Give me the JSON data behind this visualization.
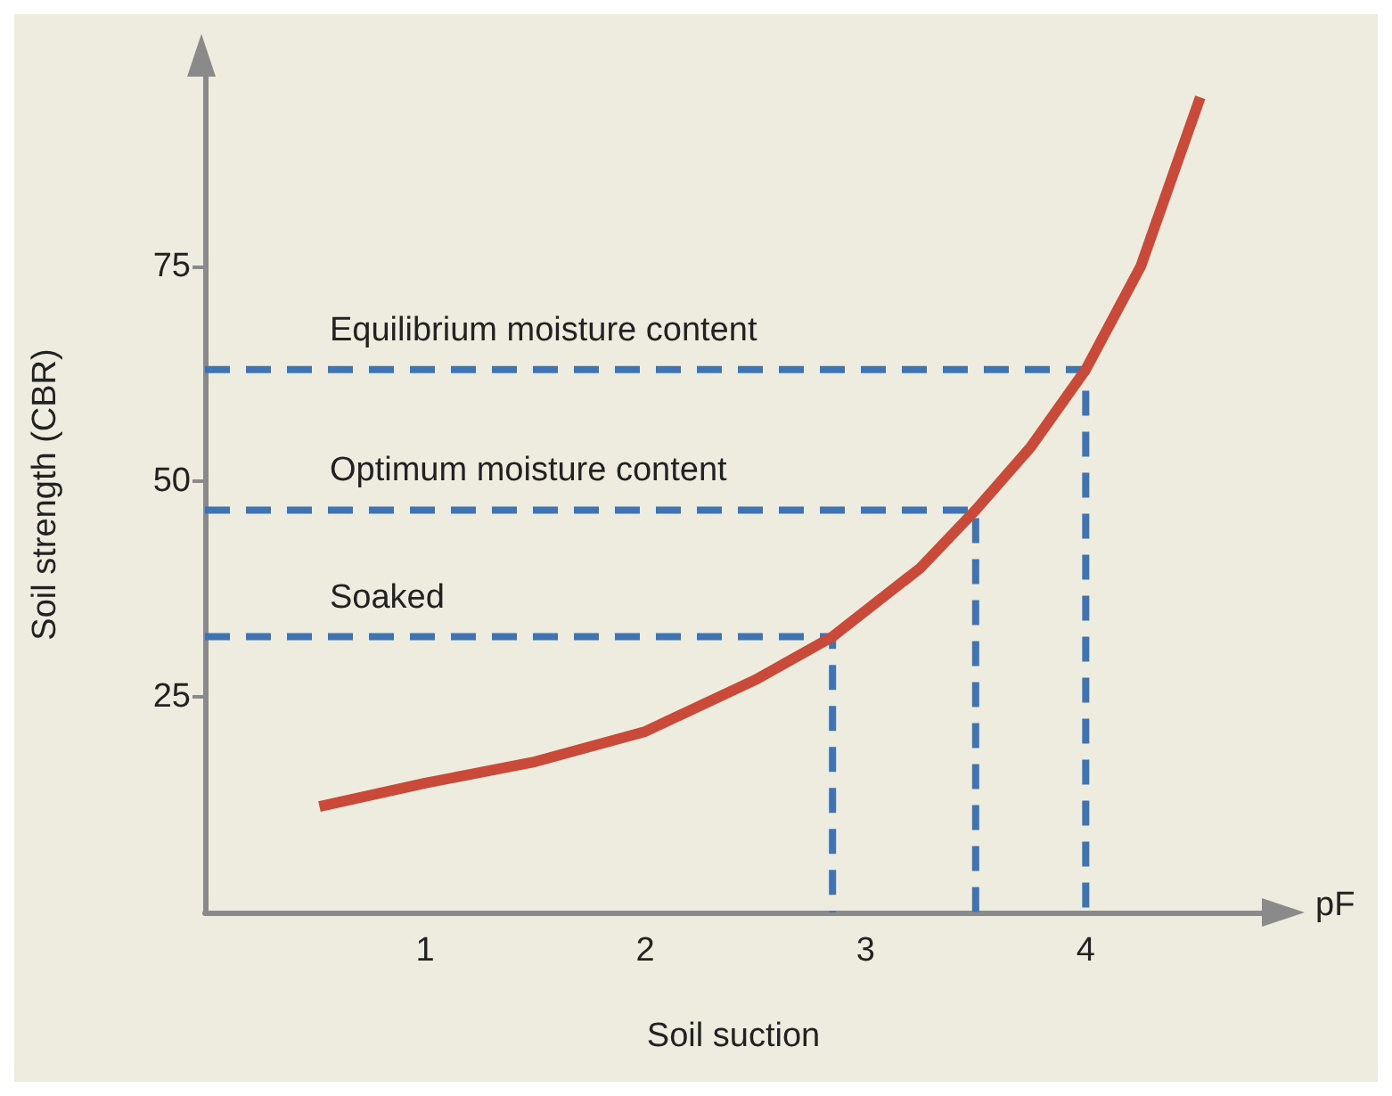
{
  "chart_data": {
    "type": "line",
    "xlabel": "Soil suction",
    "ylabel": "Soil strength (CBR)",
    "xlim": [
      0,
      4.8
    ],
    "ylim": [
      0,
      97
    ],
    "xticks": [
      1,
      2,
      3,
      4
    ],
    "yticks": [
      25,
      50,
      75
    ],
    "grid": false,
    "series": [
      {
        "color": "#c94a38",
        "x": [
          0.52,
          1.0,
          1.5,
          2.0,
          2.5,
          2.85,
          3.0,
          3.25,
          3.5,
          3.75,
          4.0,
          4.25,
          4.52
        ],
        "values": [
          12.3,
          15,
          17.5,
          21,
          27,
          32,
          35,
          40,
          46.7,
          54,
          63,
          75,
          94.6
        ]
      },
      {
        "name": "Soaked",
        "type": "line",
        "line_style": "dashed",
        "color": "#3f74b4",
        "x": [
          0,
          2.85,
          2.85
        ],
        "values": [
          32,
          32,
          0
        ]
      },
      {
        "name": "Optimum moisture content",
        "type": "line",
        "line_style": "dashed",
        "color": "#3f74b4",
        "x": [
          0,
          3.5,
          3.5
        ],
        "values": [
          46.7,
          46.7,
          0
        ]
      },
      {
        "name": "Equilibrium moisture content",
        "type": "line",
        "line_style": "dashed",
        "color": "#3f74b4",
        "x": [
          0,
          4.0,
          4.0
        ],
        "values": [
          63,
          63,
          0
        ]
      }
    ],
    "annotations": [
      "pF"
    ]
  }
}
